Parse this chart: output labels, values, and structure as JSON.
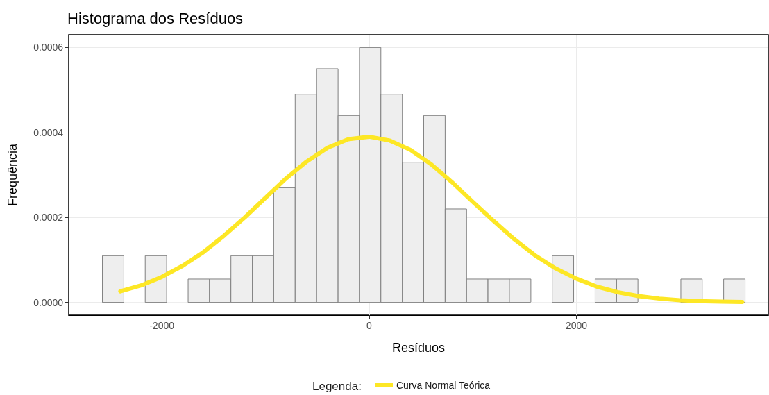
{
  "chart_data": {
    "type": "histogram",
    "title": "Histograma dos Resíduos",
    "xlabel": "Resíduos",
    "ylabel": "Frequência",
    "legend_title": "Legenda:",
    "bins": [
      -2573,
      -2366,
      -2160,
      -1953,
      -1746,
      -1540,
      -1333,
      -1126,
      -920,
      -713,
      -506,
      -299,
      -93,
      114,
      321,
      527,
      734,
      941,
      1147,
      1354,
      1561,
      1767,
      1974,
      2181,
      2388,
      2594,
      2801,
      3008,
      3214,
      3421,
      3628
    ],
    "values": [
      0.00011,
      0,
      0.00011,
      0,
      5.5e-05,
      5.5e-05,
      0.00011,
      0.00011,
      0.00027,
      0.00049,
      0.00055,
      0.00044,
      0.0006,
      0.00049,
      0.00033,
      0.00044,
      0.00022,
      5.5e-05,
      5.5e-05,
      5.5e-05,
      0,
      0.00011,
      0,
      5.5e-05,
      5.5e-05,
      0,
      0,
      5.5e-05,
      0,
      5.5e-05
    ],
    "color": "#eeeeee",
    "series": [
      {
        "type": "line",
        "name": "Curva Normal Teórica",
        "color": "#fde725",
        "x": [
          -2400,
          -2200,
          -2000,
          -1800,
          -1600,
          -1400,
          -1200,
          -1000,
          -800,
          -600,
          -400,
          -200,
          0,
          200,
          400,
          600,
          800,
          1000,
          1200,
          1400,
          1600,
          1800,
          2000,
          2200,
          2400,
          2600,
          2800,
          3000,
          3200,
          3400,
          3600
        ],
        "values": [
          2.6e-05,
          4e-05,
          6e-05,
          8.6e-05,
          0.000118,
          0.000157,
          0.0002,
          0.000246,
          0.000292,
          0.000332,
          0.000364,
          0.000384,
          0.00039,
          0.000381,
          0.000359,
          0.000325,
          0.000283,
          0.000237,
          0.000192,
          0.000149,
          0.000111,
          8e-05,
          5.6e-05,
          3.7e-05,
          2.4e-05,
          1.5e-05,
          9e-06,
          5e-06,
          3e-06,
          2e-06,
          1e-06
        ]
      }
    ],
    "xlim": [
      -2898,
      3852
    ],
    "xticks": [
      -2000,
      0,
      2000
    ],
    "ylim": [
      -3e-05,
      0.00063
    ],
    "yticks": [
      {
        "value": 0,
        "label": "0.0000"
      },
      {
        "value": 0.0002,
        "label": "0.0002"
      },
      {
        "value": 0.0004,
        "label": "0.0004"
      },
      {
        "value": 0.0006,
        "label": "0.0006"
      }
    ],
    "grid": true,
    "legend": "bottom",
    "marker": "none",
    "line_style": "solid"
  }
}
